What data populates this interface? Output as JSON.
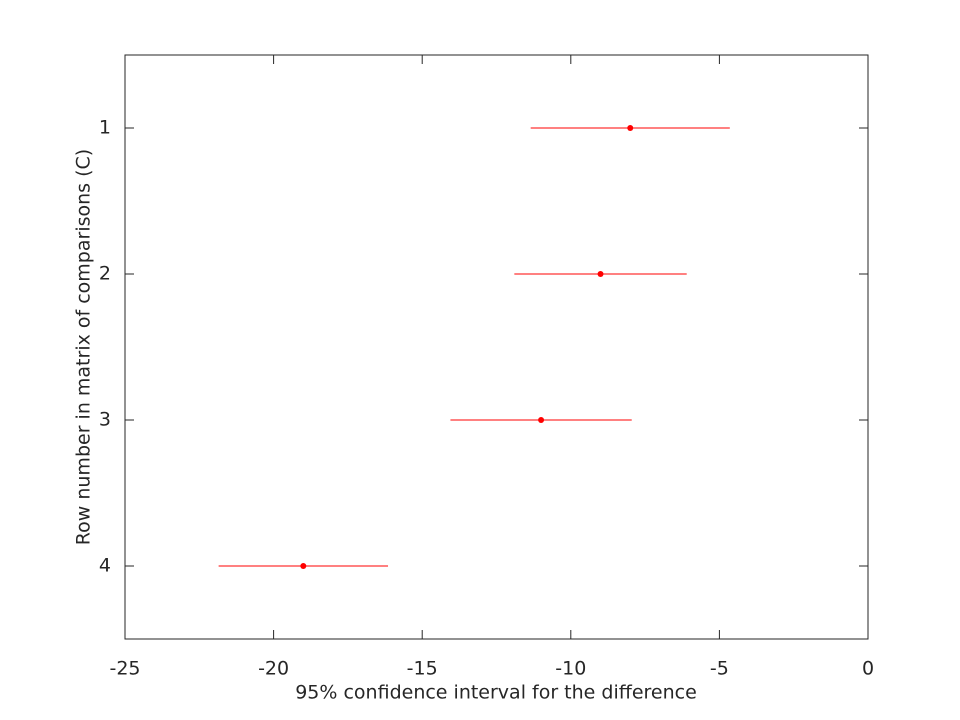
{
  "chart_data": {
    "type": "interval",
    "xlabel": "95% confidence interval for the difference",
    "ylabel": "Row number in matrix of comparisons (C)",
    "y": [
      1,
      2,
      3,
      4
    ],
    "values": [
      -8.0,
      -9.0,
      -11.0,
      -19.0
    ],
    "lower": [
      -11.35,
      -11.9,
      -14.05,
      -21.85
    ],
    "upper": [
      -4.65,
      -6.1,
      -7.95,
      -16.15
    ],
    "color": "#ff0000",
    "xlim": [
      -25,
      0
    ],
    "xticks": [
      -25,
      -20,
      -15,
      -10,
      -5,
      0
    ],
    "ylim": [
      0.5,
      4.5
    ],
    "yticks": [
      1,
      2,
      3,
      4
    ],
    "y_reversed": true
  }
}
